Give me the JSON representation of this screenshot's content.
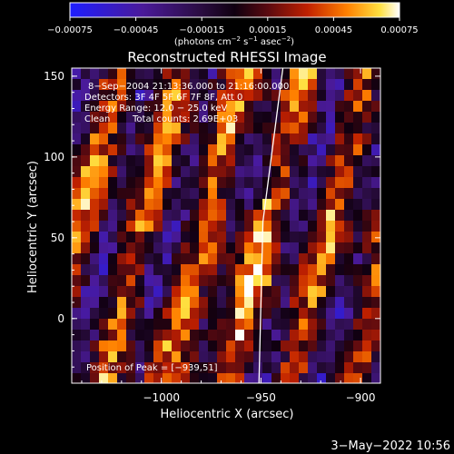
{
  "chart_data": {
    "type": "heatmap",
    "title": "Reconstructed RHESSI Image",
    "xlabel": "Heliocentric X (arcsec)",
    "ylabel": "Heliocentric Y (arcsec)",
    "xlim": [
      -1045,
      -890
    ],
    "ylim": [
      -40,
      155
    ],
    "x_ticks": [
      -1000,
      -950,
      -900
    ],
    "x_tick_labels": [
      "−1000",
      "−950",
      "−900"
    ],
    "y_ticks": [
      0,
      50,
      100,
      150
    ],
    "y_tick_labels": [
      "0",
      "50",
      "100",
      "150"
    ],
    "colorbar": {
      "range": [
        -0.00075,
        0.00075
      ],
      "ticks": [
        -0.00075,
        -0.00045,
        -0.00015,
        0.00015,
        0.00045,
        0.00075
      ],
      "tick_labels": [
        "−0.00075",
        "−0.00045",
        "−0.00015",
        "0.00015",
        "0.00045",
        "0.00075"
      ],
      "units_prefix": "(photons cm",
      "units_exp1": "−2",
      "units_mid1": " s",
      "units_exp2": "−1",
      "units_mid2": " asec",
      "units_exp3": "−2",
      "units_suffix": ")"
    },
    "annotations": {
      "time_range": "8−Sep−2004 21:13:36.000 to 21:16:00.000",
      "detectors": "Detectors: 3F 4F 5F 6F 7F 8F, Att 0",
      "energy": "Energy Range: 12.0 − 25.0 keV",
      "method": "Clean",
      "total_counts": "Total counts: 2.69E+03",
      "peak": "Position of Peak = [−939,51]"
    },
    "limb_line": {
      "points": [
        [
          -951,
          -40
        ],
        [
          -949,
          60
        ],
        [
          -939,
          155
        ]
      ]
    },
    "footer_timestamp": "3−May−2022 10:56"
  }
}
